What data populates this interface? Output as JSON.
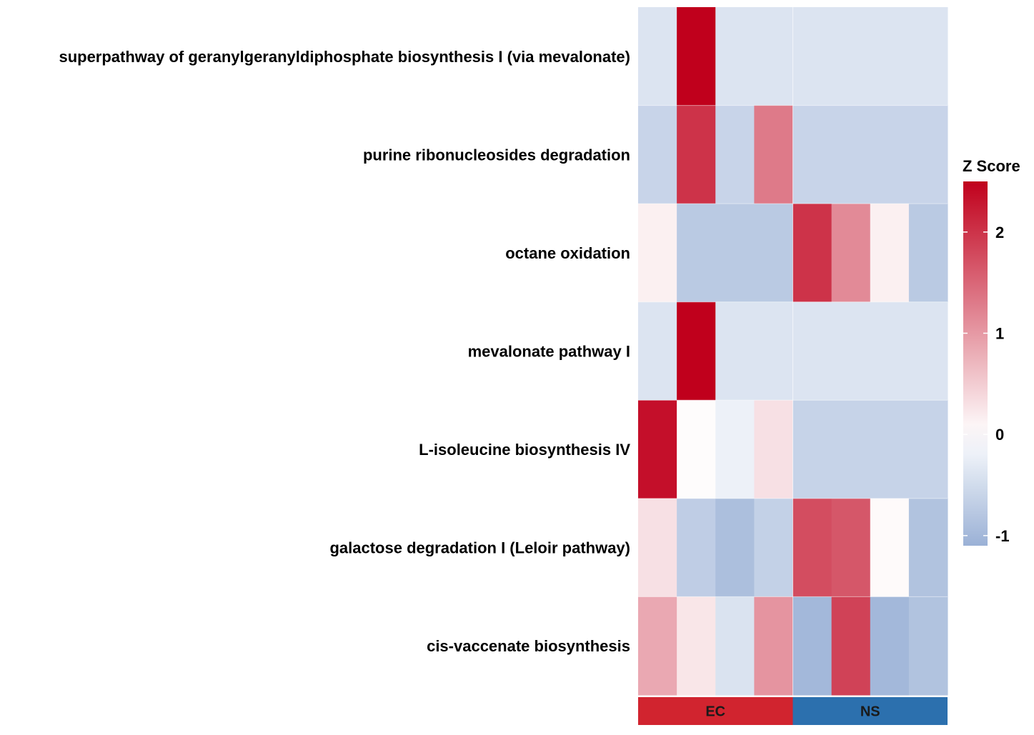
{
  "chart_data": {
    "type": "heatmap",
    "rows": [
      "superpathway of geranylgeranyldiphosphate biosynthesis I (via mevalonate)",
      "purine ribonucleosides degradation",
      "octane oxidation",
      "mevalonate pathway I",
      "L-isoleucine biosynthesis IV",
      "galactose degradation I (Leloir pathway)",
      "cis-vaccenate biosynthesis"
    ],
    "columns": 8,
    "groups": [
      {
        "name": "EC",
        "columns": 4,
        "color": "#D1242F"
      },
      {
        "name": "NS",
        "columns": 4,
        "color": "#2C70AE"
      }
    ],
    "values": [
      [
        -0.38,
        2.5,
        -0.38,
        -0.38,
        -0.38,
        -0.38,
        -0.38,
        -0.38
      ],
      [
        -0.6,
        2.0,
        -0.6,
        1.3,
        -0.6,
        -0.6,
        -0.6,
        -0.6
      ],
      [
        0.15,
        -0.75,
        -0.75,
        -0.75,
        2.0,
        1.15,
        0.15,
        -0.75
      ],
      [
        -0.38,
        2.5,
        -0.38,
        -0.38,
        -0.38,
        -0.38,
        -0.38,
        -0.38
      ],
      [
        2.35,
        0.03,
        -0.2,
        0.3,
        -0.62,
        -0.62,
        -0.62,
        -0.62
      ],
      [
        0.3,
        -0.7,
        -0.9,
        -0.65,
        1.75,
        1.65,
        0.05,
        -0.85
      ],
      [
        0.85,
        0.25,
        -0.4,
        1.05,
        -1.0,
        1.85,
        -1.0,
        -0.85
      ]
    ],
    "legend": {
      "title": "Z Score",
      "ticks": [
        -1,
        0,
        1,
        2
      ],
      "range": [
        -1.1,
        2.5
      ]
    },
    "colors": {
      "low": "#9AB1D6",
      "mid": "#FFFFFF",
      "high": "#C0001C"
    }
  }
}
